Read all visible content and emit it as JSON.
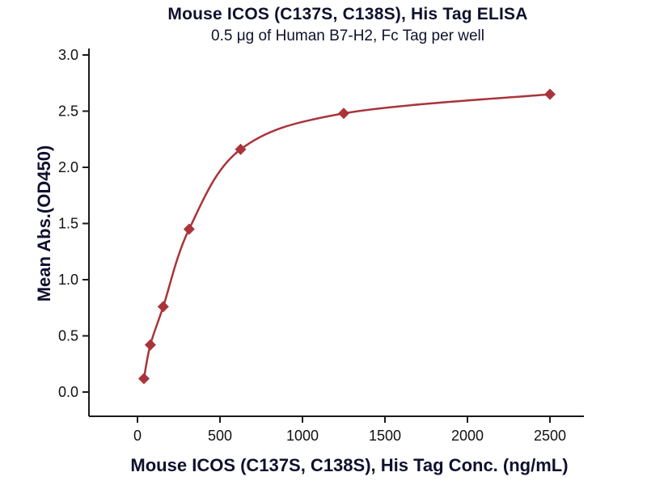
{
  "chart_data": {
    "type": "scatter",
    "title": "Mouse ICOS (C137S, C138S), His Tag ELISA",
    "subtitle": "0.5 μg of Human B7-H2, Fc Tag per well",
    "xlabel": "Mouse ICOS (C137S, C138S), His Tag Conc. (ng/mL)",
    "ylabel": "Mean Abs.(OD450)",
    "series": [
      {
        "name": "Mouse ICOS (C137S, C138S), His Tag",
        "x": [
          39,
          78,
          156,
          313,
          625,
          1250,
          2500
        ],
        "y": [
          0.12,
          0.42,
          0.76,
          1.45,
          2.16,
          2.48,
          2.65
        ]
      }
    ],
    "xlim": [
      0,
      2700
    ],
    "ylim": [
      0,
      3.0
    ],
    "xtick_values": [
      0,
      500,
      1000,
      1500,
      2000,
      2500
    ],
    "xtick_labels": [
      "0",
      "500",
      "1000",
      "1500",
      "2000",
      "2500"
    ],
    "ytick_values": [
      0,
      0.5,
      1.0,
      1.5,
      2.0,
      2.5,
      3.0
    ],
    "ytick_labels": [
      "0.0",
      "0.5",
      "1.0",
      "1.5",
      "2.0",
      "2.5",
      "3.0"
    ],
    "marker": "diamond",
    "curve": "4PL-fit",
    "grid": false,
    "legend": "none",
    "colors": {
      "line": "#A93439",
      "marker": "#A93439",
      "axis": "#1A1A1A",
      "title_text": "#10102E",
      "tick_text": "#111111",
      "background": "#FFFFFF"
    }
  }
}
